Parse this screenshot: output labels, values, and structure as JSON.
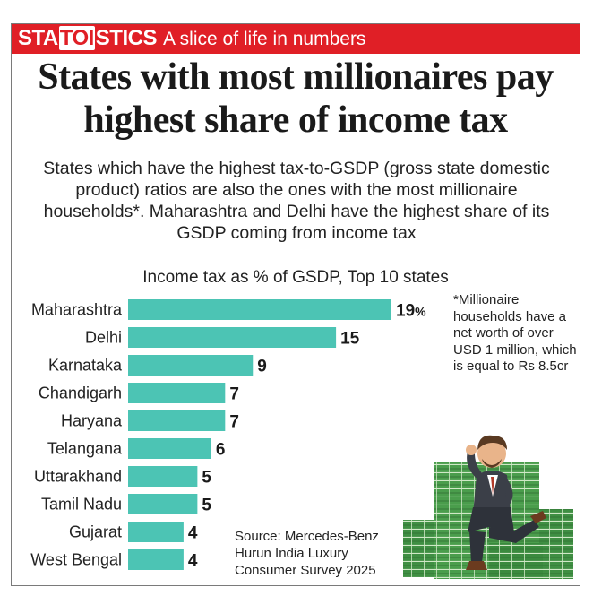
{
  "header": {
    "brand_part1": "STA",
    "brand_part2": "TOI",
    "brand_part3": "STICS",
    "tagline": "A slice of life in numbers"
  },
  "headline": "States with most millionaires pay highest share of income tax",
  "subtitle": "States which have the highest tax-to-GSDP (gross state domestic product) ratios are also the ones with the most millionaire households*. Maharashtra and Delhi have the highest share of its GSDP coming from income tax",
  "footnote": "*Millionaire households have a net worth of over USD 1 million, which is equal to Rs 8.5cr",
  "source": "Source: Mercedes-Benz Hurun India Luxury Consumer Survey 2025",
  "colors": {
    "banner": "#e01f26",
    "bar": "#4cc4b4"
  },
  "chart_data": {
    "type": "bar",
    "orientation": "horizontal",
    "title": "Income tax as % of GSDP, Top 10 states",
    "categories": [
      "Maharashtra",
      "Delhi",
      "Karnataka",
      "Chandigarh",
      "Haryana",
      "Telangana",
      "Uttarakhand",
      "Tamil Nadu",
      "Gujarat",
      "West Bengal"
    ],
    "values": [
      19,
      15,
      9,
      7,
      7,
      6,
      5,
      5,
      4,
      4
    ],
    "value_labels": [
      "19%",
      "15",
      "9",
      "7",
      "7",
      "6",
      "5",
      "5",
      "4",
      "4"
    ],
    "xlim": [
      0,
      19
    ],
    "xlabel": "",
    "ylabel": "",
    "grid": false
  }
}
